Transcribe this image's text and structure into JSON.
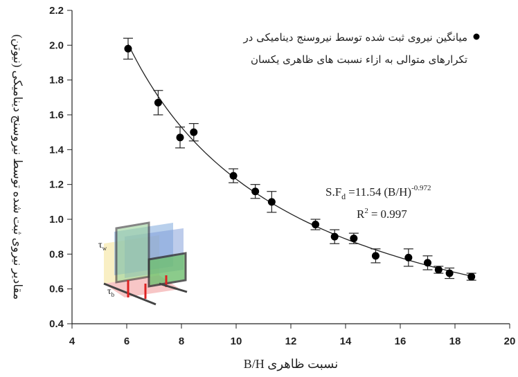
{
  "chart_data": {
    "type": "scatter",
    "x_label": "نسبت ظاهری B/H",
    "y_label": "مقادیر نیروی ثبت شده توسط نیروسنج دینامیکی (نیوتن)",
    "x": [
      6.05,
      7.15,
      7.95,
      8.45,
      9.9,
      10.7,
      11.3,
      12.9,
      13.6,
      14.3,
      15.1,
      16.3,
      17.0,
      17.4,
      17.8,
      18.6
    ],
    "series": [
      {
        "name": "میانگین نیروی ثبت شده توسط نیروسنج دینامیکی در تکرارهای متوالی به ازاء نسبت های ظاهری یکسان",
        "color": "#000000",
        "values": [
          1.98,
          1.67,
          1.47,
          1.5,
          1.25,
          1.16,
          1.1,
          0.97,
          0.9,
          0.89,
          0.79,
          0.78,
          0.75,
          0.71,
          0.69,
          0.67
        ],
        "errors": [
          0.06,
          0.07,
          0.06,
          0.05,
          0.04,
          0.04,
          0.06,
          0.03,
          0.04,
          0.03,
          0.04,
          0.05,
          0.04,
          0.02,
          0.03,
          0.02
        ]
      }
    ],
    "fit": {
      "text": "S.F",
      "subscript": "d",
      "equals": "=",
      "coefficient": 11.54,
      "base": "(B/H)",
      "exponent": -0.972
    },
    "r_squared": {
      "text": "R",
      "superscript": 2,
      "equals": "=",
      "value": 0.997
    },
    "inset_labels": [
      {
        "text": "τ",
        "sub": "w"
      },
      {
        "text": "τ",
        "sub": "b"
      }
    ],
    "xlim": [
      4,
      20
    ],
    "xticks": [
      4,
      6,
      8,
      10,
      12,
      14,
      16,
      18,
      20
    ],
    "ylim": [
      0.4,
      2.2
    ],
    "yticks": [
      0.4,
      0.6,
      0.8,
      {
        "value": 1.0,
        "label": "1.0"
      },
      1.2,
      1.4,
      1.6,
      1.8,
      {
        "value": 2.0,
        "label": "2.0"
      },
      2.2
    ],
    "grid": false
  }
}
